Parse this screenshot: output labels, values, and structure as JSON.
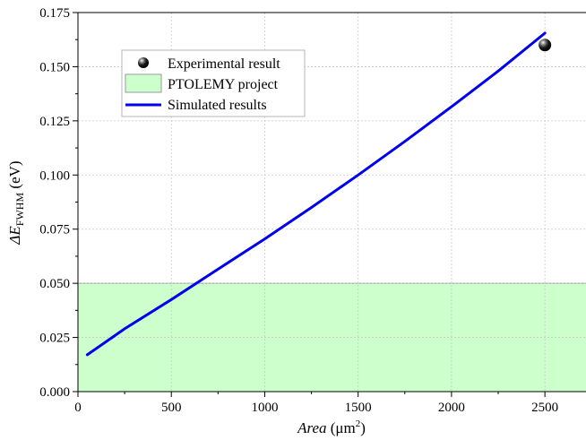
{
  "chart_data": {
    "type": "line",
    "xlabel": {
      "italic": "Area",
      "unit_prefix": " (μm",
      "unit_sup": "2",
      "unit_suffix": ")"
    },
    "ylabel": {
      "prefix": "ΔE",
      "sub": "FWHM",
      "suffix": " (eV)"
    },
    "xlim": [
      0,
      2720
    ],
    "ylim": [
      0,
      0.175
    ],
    "xticks": [
      0,
      500,
      1000,
      1500,
      2000,
      2500
    ],
    "yticks": [
      0.0,
      0.025,
      0.05,
      0.075,
      0.1,
      0.125,
      0.15,
      0.175
    ],
    "ytick_labels": [
      "0.000",
      "0.025",
      "0.050",
      "0.075",
      "0.100",
      "0.125",
      "0.150",
      "0.175"
    ],
    "grid": true,
    "legend_position": "top-left",
    "band": {
      "name": "PTOLEMY project",
      "y_from": 0.0,
      "y_to": 0.05,
      "color": "#ccffcc",
      "edge_color": "#9a9a9a"
    },
    "series": [
      {
        "name": "Simulated results",
        "kind": "line",
        "color": "#0000ee",
        "x": [
          50,
          250,
          500,
          750,
          1000,
          1250,
          1500,
          1750,
          2000,
          2250,
          2500
        ],
        "y": [
          0.017,
          0.029,
          0.0425,
          0.0565,
          0.0705,
          0.085,
          0.1,
          0.1155,
          0.1315,
          0.148,
          0.1655
        ]
      },
      {
        "name": "Experimental result",
        "kind": "scatter",
        "color": "#000000",
        "x": [
          2500
        ],
        "y": [
          0.16
        ]
      }
    ],
    "legend": [
      {
        "marker": "sphere",
        "label": "Experimental result"
      },
      {
        "marker": "patch",
        "label": "PTOLEMY project"
      },
      {
        "marker": "line",
        "label": "Simulated results"
      }
    ]
  }
}
